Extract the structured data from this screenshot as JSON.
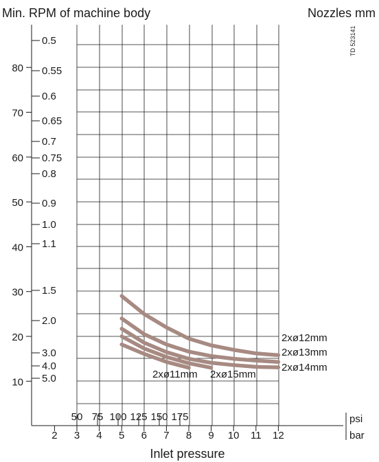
{
  "chart_data": {
    "type": "line",
    "title_left": "Min. RPM of machine body",
    "title_right": "Nozzles mm",
    "figure_code": "TD 523141",
    "xlabel": "Inlet pressure",
    "x_unit_psi": "psi",
    "x_unit_bar": "bar",
    "psi_ticks": [
      50,
      75,
      100,
      125,
      150,
      175
    ],
    "bar_ticks": [
      2,
      3,
      4,
      5,
      6,
      7,
      8,
      9,
      10,
      11,
      12
    ],
    "rpm_ticks": [
      80,
      70,
      60,
      50,
      40,
      30,
      20,
      10
    ],
    "nozzle_labels": [
      "0.5",
      "0.55",
      "0.6",
      "0.65",
      "0.7",
      "0.75",
      "0.8",
      "0.9",
      "1.0",
      "1.1",
      "1.5",
      "2.0",
      "3.0",
      "4.0",
      "5.0"
    ],
    "x_range_bar": [
      1,
      12
    ],
    "y_range_rpm": [
      3,
      90
    ],
    "grid": true,
    "curve_color": "#a78a82",
    "series": [
      {
        "name": "2xø12mm",
        "x": [
          5,
          6,
          7,
          8,
          9,
          10,
          11,
          12
        ],
        "y": [
          29,
          25,
          22,
          19.5,
          18,
          17,
          16.2,
          15.8
        ]
      },
      {
        "name": "2xø13mm",
        "x": [
          5,
          6,
          7,
          8,
          9,
          10,
          11,
          12
        ],
        "y": [
          24,
          20.5,
          18.2,
          16.6,
          15.6,
          15,
          14.6,
          14.3
        ]
      },
      {
        "name": "2xø14mm",
        "x": [
          5,
          6,
          7,
          8,
          9,
          10,
          11,
          12
        ],
        "y": [
          21.7,
          18.6,
          16.5,
          15,
          14.1,
          13.6,
          13.2,
          13.1
        ]
      },
      {
        "name": "2xø15mm",
        "x": [
          5,
          6,
          7,
          8,
          9
        ],
        "y": [
          20,
          17.3,
          15.4,
          14,
          13
        ]
      },
      {
        "name": "2xø11mm",
        "x": [
          5,
          6,
          7,
          8
        ],
        "y": [
          18.2,
          16.1,
          14.3,
          13
        ]
      }
    ]
  }
}
